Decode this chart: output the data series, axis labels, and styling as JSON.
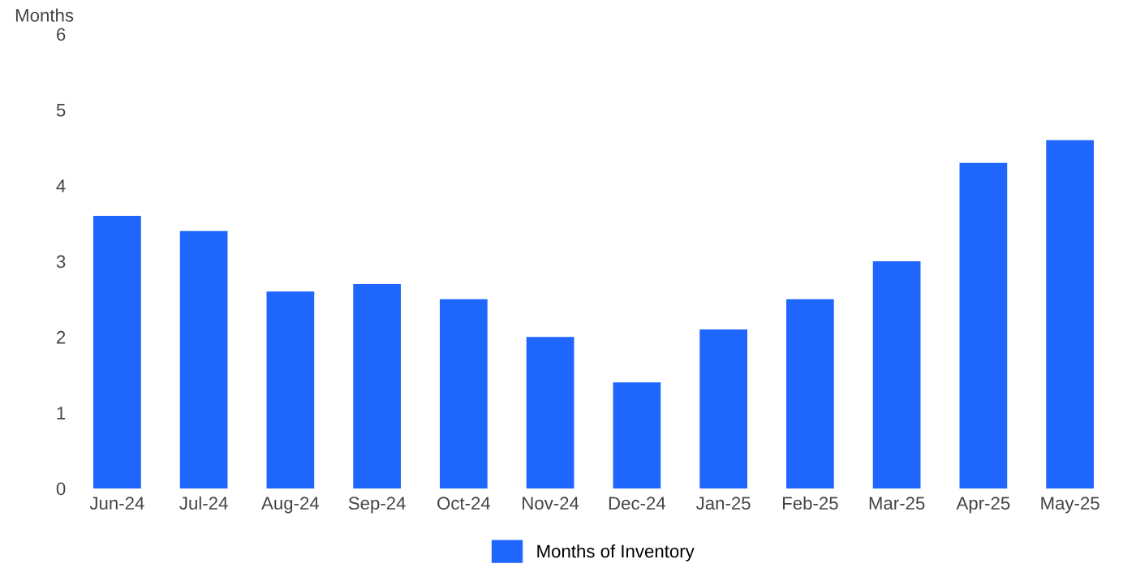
{
  "chart_data": {
    "type": "bar",
    "ylabel": "Months",
    "categories": [
      "Jun-24",
      "Jul-24",
      "Aug-24",
      "Sep-24",
      "Oct-24",
      "Nov-24",
      "Dec-24",
      "Jan-25",
      "Feb-25",
      "Mar-25",
      "Apr-25",
      "May-25"
    ],
    "series": [
      {
        "name": "Months of Inventory",
        "color": "#1f66ff",
        "values": [
          3.6,
          3.4,
          2.6,
          2.7,
          2.5,
          2.0,
          1.4,
          2.1,
          2.5,
          3.0,
          4.3,
          4.6
        ]
      }
    ],
    "ylim": [
      0,
      6
    ],
    "yticks": [
      0,
      1,
      2,
      3,
      4,
      5,
      6
    ],
    "grid": false,
    "legend": "bottom"
  }
}
